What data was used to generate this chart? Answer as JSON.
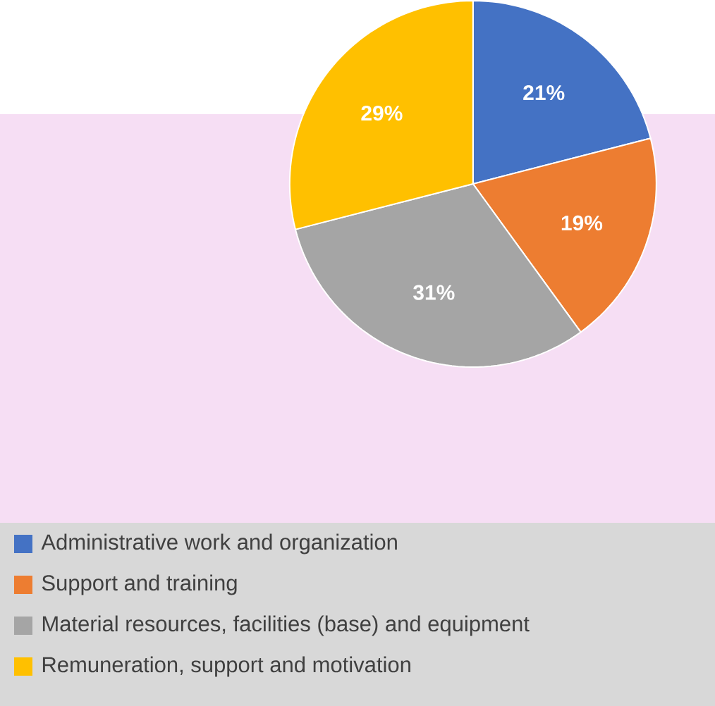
{
  "chart_data": {
    "type": "pie",
    "categories": [
      "Administrative work and organization",
      "Support and training",
      "Material resources, facilities (base) and equipment",
      "Remuneration, support and motivation"
    ],
    "values": [
      21,
      19,
      31,
      29
    ],
    "value_labels": [
      "21%",
      "19%",
      "31%",
      "29%"
    ],
    "colors": [
      "#4472c4",
      "#ed7d31",
      "#a5a5a5",
      "#ffc000"
    ],
    "legend": "bottom"
  }
}
